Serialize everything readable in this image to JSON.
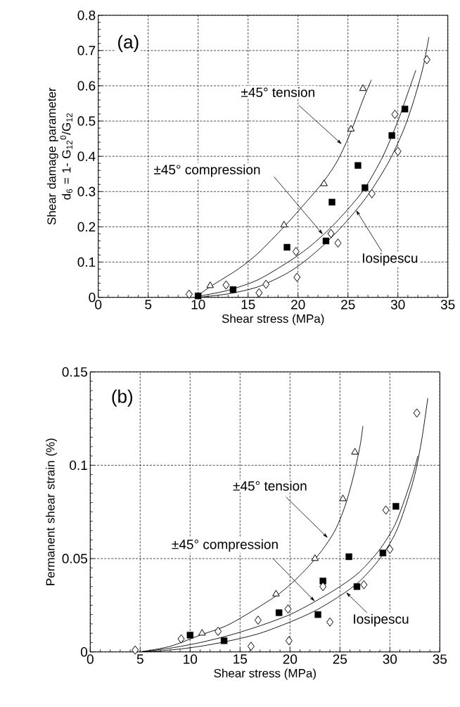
{
  "chart_data": [
    {
      "type": "scatter",
      "xlabel": "Shear stress (MPa)",
      "ylabel": "Shear damage parameter d$_{6}$ = 1- G$_{12}$$^{0}$/G$_{12}$",
      "annotations": [
        "(a)",
        {
          "text": "±45° tension",
          "x": 24.4,
          "y": 0.434
        },
        {
          "text": "±45° compression",
          "x": 22.5,
          "y": 0.178
        },
        {
          "text": "Iosipescu",
          "x": 25.8,
          "y": 0.248
        }
      ],
      "xlim": [
        0,
        35
      ],
      "ylim": [
        0,
        0.8
      ],
      "xticks": [
        0,
        5,
        10,
        15,
        20,
        25,
        30,
        35
      ],
      "yticks": [
        0,
        0.1,
        0.2,
        0.3,
        0.4,
        0.5,
        0.6,
        0.7,
        0.8
      ],
      "grid": true,
      "series": [
        {
          "marker": "triangle",
          "color": "#000000",
          "x": [
            11.2,
            18.6,
            22.6,
            25.3,
            26.5
          ],
          "values": [
            0.033,
            0.205,
            0.322,
            0.477,
            0.592
          ]
        },
        {
          "marker": "square",
          "color": "#000000",
          "x": [
            10.0,
            13.5,
            18.9,
            22.8,
            23.4,
            26.0,
            26.7,
            29.4,
            30.7
          ],
          "values": [
            0.004,
            0.022,
            0.142,
            0.16,
            0.27,
            0.374,
            0.311,
            0.459,
            0.534
          ]
        },
        {
          "marker": "diamond",
          "color": "#000000",
          "x": [
            9.1,
            12.8,
            16.1,
            16.8,
            19.8,
            19.9,
            23.3,
            24.0,
            27.4,
            29.7,
            30.0,
            32.9
          ],
          "values": [
            0.009,
            0.035,
            0.013,
            0.037,
            0.13,
            0.057,
            0.181,
            0.154,
            0.294,
            0.519,
            0.414,
            0.674
          ]
        },
        {
          "type": "line",
          "marker": "none",
          "color": "#000000",
          "x": [
            10,
            11.2,
            14,
            16,
            18.6,
            20.5,
            22.6,
            24,
            25.3,
            26.5,
            27.35
          ],
          "values": [
            0.005,
            0.03,
            0.08,
            0.125,
            0.2,
            0.26,
            0.33,
            0.39,
            0.47,
            0.56,
            0.617
          ]
        },
        {
          "type": "line",
          "marker": "none",
          "color": "#000000",
          "x": [
            10,
            13,
            16,
            19,
            21,
            23,
            25,
            26.7,
            28.5,
            30,
            31,
            31.8
          ],
          "values": [
            0.003,
            0.02,
            0.05,
            0.1,
            0.14,
            0.19,
            0.25,
            0.31,
            0.4,
            0.5,
            0.58,
            0.644
          ]
        },
        {
          "type": "line",
          "marker": "none",
          "color": "#000000",
          "x": [
            10,
            13,
            16,
            19,
            21,
            23,
            25,
            27,
            29,
            30.5,
            31.5,
            32.5,
            33.1
          ],
          "values": [
            0,
            0.01,
            0.03,
            0.07,
            0.11,
            0.16,
            0.22,
            0.29,
            0.38,
            0.47,
            0.55,
            0.65,
            0.738
          ]
        }
      ]
    },
    {
      "type": "scatter",
      "xlabel": "Shear stress (MPa)",
      "ylabel": "Permanent shear strain (%)",
      "annotations": [
        "(b)",
        {
          "text": "±45° tension",
          "x": 23.8,
          "y": 0.061
        },
        {
          "text": "±45° compression",
          "x": 22.5,
          "y": 0.027
        },
        {
          "text": "Iosipescu",
          "x": 25.6,
          "y": 0.032
        }
      ],
      "xlim": [
        0,
        35
      ],
      "ylim": [
        0,
        0.15
      ],
      "xticks": [
        0,
        5,
        10,
        15,
        20,
        25,
        30,
        35
      ],
      "yticks": [
        0,
        0.05,
        0.1,
        0.15
      ],
      "grid": true,
      "series": [
        {
          "marker": "triangle",
          "color": "#000000",
          "x": [
            11.2,
            18.6,
            22.5,
            25.3,
            26.5
          ],
          "values": [
            0.01,
            0.031,
            0.05,
            0.082,
            0.107
          ]
        },
        {
          "marker": "square",
          "color": "#000000",
          "x": [
            10.0,
            13.4,
            18.9,
            22.8,
            23.3,
            25.9,
            26.7,
            29.3,
            30.6
          ],
          "values": [
            0.009,
            0.006,
            0.021,
            0.02,
            0.038,
            0.051,
            0.035,
            0.053,
            0.078
          ]
        },
        {
          "marker": "diamond",
          "color": "#000000",
          "x": [
            4.5,
            9.1,
            12.8,
            16.1,
            16.8,
            19.8,
            19.9,
            23.3,
            24.0,
            27.4,
            29.6,
            30.0,
            32.7
          ],
          "values": [
            0.001,
            0.007,
            0.011,
            0.003,
            0.017,
            0.023,
            0.006,
            0.035,
            0.016,
            0.036,
            0.076,
            0.055,
            0.128
          ]
        },
        {
          "type": "line",
          "marker": "none",
          "color": "#000000",
          "x": [
            5,
            8,
            11,
            14,
            18.6,
            21,
            23,
            24.5,
            25.5,
            26.3,
            27,
            27.3
          ],
          "values": [
            0,
            0.003,
            0.009,
            0.015,
            0.03,
            0.041,
            0.053,
            0.065,
            0.078,
            0.093,
            0.11,
            0.121
          ]
        },
        {
          "type": "line",
          "marker": "none",
          "color": "#000000",
          "x": [
            5,
            8,
            11,
            14,
            17,
            20,
            22.5,
            25,
            27,
            29,
            30.5,
            31.5,
            32.3,
            32.8
          ],
          "values": [
            0,
            0.002,
            0.005,
            0.009,
            0.014,
            0.02,
            0.027,
            0.035,
            0.043,
            0.055,
            0.068,
            0.082,
            0.095,
            0.105
          ]
        },
        {
          "type": "line",
          "marker": "none",
          "color": "#000000",
          "x": [
            5,
            8,
            11,
            14,
            17,
            20,
            22.5,
            25,
            27,
            29,
            30.5,
            31.5,
            32.5,
            33.2,
            33.8
          ],
          "values": [
            0,
            0.001,
            0.003,
            0.006,
            0.01,
            0.016,
            0.022,
            0.03,
            0.038,
            0.05,
            0.063,
            0.077,
            0.095,
            0.114,
            0.136
          ]
        }
      ]
    }
  ]
}
